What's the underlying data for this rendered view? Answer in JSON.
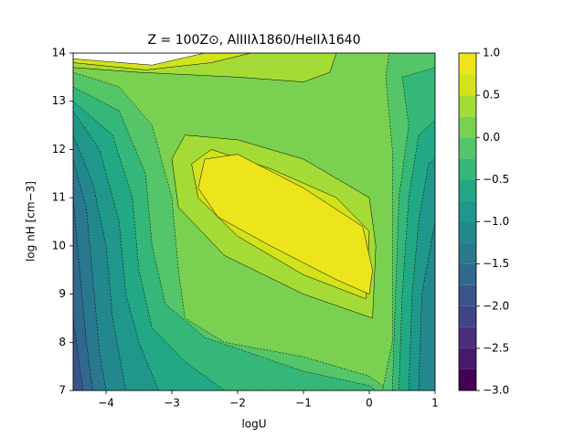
{
  "chart_data": {
    "type": "contourf",
    "title": "Z = 100Z⊙, AlIIIλ1860/HeIIλ1640",
    "x_label": "logU",
    "y_label": "log nH [cm−3]",
    "xlim": [
      -4.5,
      1
    ],
    "ylim": [
      7,
      14
    ],
    "xticks": [
      {
        "value": -4,
        "label": "−4"
      },
      {
        "value": -3,
        "label": "−3"
      },
      {
        "value": -2,
        "label": "−2"
      },
      {
        "value": -1,
        "label": "−1"
      },
      0,
      1
    ],
    "yticks": [
      7,
      8,
      9,
      10,
      11,
      12,
      13,
      14
    ],
    "levels": [
      -3,
      -2.75,
      -2.5,
      -2.25,
      -2,
      -1.75,
      -1.5,
      -1.25,
      -1,
      -0.75,
      -0.5,
      -0.25,
      0,
      0.25,
      0.5,
      0.75,
      1
    ],
    "colors": [
      "#440154",
      "#481a6c",
      "#472f7d",
      "#414487",
      "#39568c",
      "#31688e",
      "#2a788e",
      "#23888e",
      "#1f988b",
      "#22a884",
      "#35b779",
      "#54c568",
      "#7ad151",
      "#a5db36",
      "#d2e21b",
      "#ede51b"
    ],
    "over_color": "#ffffff",
    "colorbar_ticks": [
      {
        "value": -3,
        "label": "−3.0"
      },
      {
        "value": -2.5,
        "label": "−2.5"
      },
      {
        "value": -2,
        "label": "−2.0"
      },
      {
        "value": -1.5,
        "label": "−1.5"
      },
      {
        "value": -1,
        "label": "−1.0"
      },
      {
        "value": -0.5,
        "label": "−0.5"
      },
      {
        "value": 0,
        "label": "0.0"
      },
      0.5,
      {
        "value": 1,
        "label": "1.0"
      }
    ],
    "regions": [
      {
        "level": 0,
        "points": [
          [
            -4.5,
            7
          ],
          [
            1,
            7
          ],
          [
            1,
            14
          ],
          [
            -4.5,
            14
          ]
        ]
      },
      {
        "level": -0.25,
        "points": [
          [
            -4.5,
            13.6
          ],
          [
            -3.8,
            13.3
          ],
          [
            -3.3,
            12.5
          ],
          [
            -3.0,
            11
          ],
          [
            -2.9,
            9.5
          ],
          [
            -2.8,
            8.5
          ],
          [
            -2.2,
            8
          ],
          [
            -1,
            7.7
          ],
          [
            0,
            7.3
          ],
          [
            0.3,
            7
          ],
          [
            -4.5,
            7
          ]
        ]
      },
      {
        "level": -0.5,
        "points": [
          [
            -4.5,
            13.3
          ],
          [
            -3.8,
            12.8
          ],
          [
            -3.4,
            11.5
          ],
          [
            -3.3,
            10
          ],
          [
            -3.1,
            8.8
          ],
          [
            -2.5,
            8.1
          ],
          [
            -1,
            7.4
          ],
          [
            0,
            7.1
          ],
          [
            0.1,
            7
          ],
          [
            -4.5,
            7
          ]
        ]
      },
      {
        "level": -0.75,
        "points": [
          [
            -4.5,
            13
          ],
          [
            -3.9,
            12.3
          ],
          [
            -3.6,
            11
          ],
          [
            -3.5,
            9.5
          ],
          [
            -3.3,
            8.3
          ],
          [
            -2.8,
            7.6
          ],
          [
            -2.2,
            7
          ],
          [
            -4.5,
            7
          ]
        ]
      },
      {
        "level": -1,
        "points": [
          [
            -4.5,
            12.8
          ],
          [
            -4.1,
            12
          ],
          [
            -3.8,
            10.5
          ],
          [
            -3.7,
            9
          ],
          [
            -3.5,
            8
          ],
          [
            -3.2,
            7
          ],
          [
            -4.5,
            7
          ]
        ]
      },
      {
        "level": -1.25,
        "points": [
          [
            -4.5,
            12.3
          ],
          [
            -4.2,
            11.3
          ],
          [
            -4.0,
            10
          ],
          [
            -3.9,
            8.5
          ],
          [
            -3.7,
            7
          ],
          [
            -4.5,
            7
          ]
        ]
      },
      {
        "level": -1.5,
        "points": [
          [
            -4.5,
            11.8
          ],
          [
            -4.3,
            10.8
          ],
          [
            -4.2,
            9.3
          ],
          [
            -4.1,
            7.8
          ],
          [
            -4.0,
            7
          ],
          [
            -4.5,
            7
          ]
        ]
      },
      {
        "level": -1.75,
        "points": [
          [
            -4.5,
            11
          ],
          [
            -4.4,
            9.5
          ],
          [
            -4.3,
            8
          ],
          [
            -4.2,
            7
          ],
          [
            -4.5,
            7
          ]
        ]
      },
      {
        "level": -2,
        "points": [
          [
            -4.5,
            8.5
          ],
          [
            -4.4,
            7.5
          ],
          [
            -4.35,
            7
          ],
          [
            -4.5,
            7
          ]
        ]
      },
      {
        "level": -0.25,
        "points": [
          [
            0.3,
            14
          ],
          [
            1,
            14
          ],
          [
            1,
            7
          ],
          [
            0.2,
            7
          ],
          [
            0.35,
            8
          ],
          [
            0.35,
            10
          ],
          [
            0.35,
            12
          ],
          [
            0.25,
            13.5
          ]
        ]
      },
      {
        "level": -0.5,
        "points": [
          [
            0.5,
            13.5
          ],
          [
            1,
            13.7
          ],
          [
            1,
            7
          ],
          [
            0.35,
            7
          ],
          [
            0.4,
            9
          ],
          [
            0.45,
            11
          ],
          [
            0.6,
            12.5
          ]
        ]
      },
      {
        "level": -0.75,
        "points": [
          [
            0.75,
            12.3
          ],
          [
            1,
            12.6
          ],
          [
            1,
            7
          ],
          [
            0.45,
            7
          ],
          [
            0.5,
            9
          ],
          [
            0.6,
            11
          ]
        ]
      },
      {
        "level": -1,
        "points": [
          [
            0.9,
            11.7
          ],
          [
            1,
            11.8
          ],
          [
            1,
            7
          ],
          [
            0.6,
            7
          ],
          [
            0.65,
            9
          ],
          [
            0.75,
            10.5
          ]
        ]
      },
      {
        "level": -1.25,
        "points": [
          [
            1,
            10.5
          ],
          [
            1,
            7
          ],
          [
            0.75,
            7
          ],
          [
            0.8,
            9
          ]
        ]
      },
      {
        "level": 0.25,
        "points": [
          [
            -4.5,
            14
          ],
          [
            -0.5,
            14
          ],
          [
            -0.6,
            13.6
          ],
          [
            -1,
            13.4
          ],
          [
            -2,
            13.5
          ],
          [
            -3.5,
            13.6
          ],
          [
            -4.5,
            13.7
          ]
        ]
      },
      {
        "level": 0.5,
        "points": [
          [
            -4.5,
            14
          ],
          [
            -1.8,
            14
          ],
          [
            -2.4,
            13.8
          ],
          [
            -3.4,
            13.65
          ],
          [
            -4.5,
            13.8
          ]
        ]
      },
      {
        "level": 1,
        "points": [
          [
            -4.5,
            14
          ],
          [
            -2.5,
            14
          ],
          [
            -3.3,
            13.75
          ],
          [
            -4.5,
            13.88
          ]
        ]
      },
      {
        "level": 0.25,
        "points": [
          [
            -2.8,
            12.3
          ],
          [
            -2,
            12.2
          ],
          [
            -1,
            11.8
          ],
          [
            0,
            11
          ],
          [
            0.1,
            10
          ],
          [
            0.05,
            8.5
          ],
          [
            -1,
            9
          ],
          [
            -2.2,
            9.8
          ],
          [
            -2.9,
            10.8
          ],
          [
            -3,
            11.8
          ]
        ]
      },
      {
        "level": 0.5,
        "points": [
          [
            -2.4,
            12
          ],
          [
            -1.5,
            11.6
          ],
          [
            -0.5,
            11
          ],
          [
            0,
            10.3
          ],
          [
            -0.05,
            8.9
          ],
          [
            -1,
            9.4
          ],
          [
            -2,
            10.2
          ],
          [
            -2.6,
            11
          ],
          [
            -2.7,
            11.7
          ]
        ]
      },
      {
        "level": 0.75,
        "points": [
          [
            -2.5,
            11.8
          ],
          [
            -2,
            11.9
          ],
          [
            -1,
            11.2
          ],
          [
            -0.1,
            10.4
          ],
          [
            0.05,
            9.5
          ],
          [
            0,
            9
          ],
          [
            -0.5,
            9.3
          ],
          [
            -1.5,
            10
          ],
          [
            -2.3,
            10.6
          ],
          [
            -2.6,
            11.2
          ]
        ]
      }
    ]
  }
}
